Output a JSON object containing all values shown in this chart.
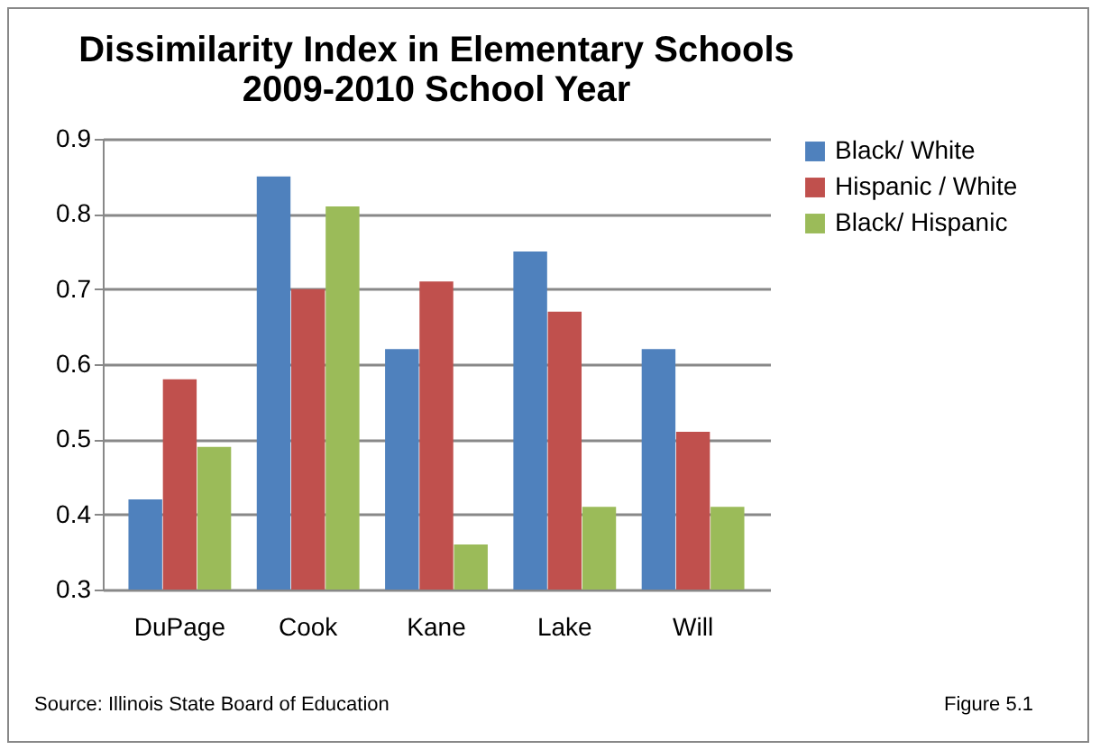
{
  "chart_data": {
    "type": "bar",
    "title": "Dissimilarity Index in Elementary Schools\n2009-2010 School Year",
    "categories": [
      "DuPage",
      "Cook",
      "Kane",
      "Lake",
      "Will"
    ],
    "series": [
      {
        "name": "Black/ White",
        "color": "#4f81bd",
        "values": [
          0.42,
          0.85,
          0.62,
          0.75,
          0.62
        ]
      },
      {
        "name": "Hispanic / White",
        "color": "#c0504d",
        "values": [
          0.58,
          0.7,
          0.71,
          0.67,
          0.51
        ]
      },
      {
        "name": "Black/ Hispanic",
        "color": "#9bbb59",
        "values": [
          0.49,
          0.81,
          0.36,
          0.41,
          0.41
        ]
      }
    ],
    "ylim": [
      0.3,
      0.9
    ],
    "yticks": [
      0.3,
      0.4,
      0.5,
      0.6,
      0.7,
      0.8,
      0.9
    ],
    "grid": "y",
    "legend": "right",
    "annotations": [
      "Source: Illinois State Board of Education",
      "Figure 5.1"
    ]
  }
}
